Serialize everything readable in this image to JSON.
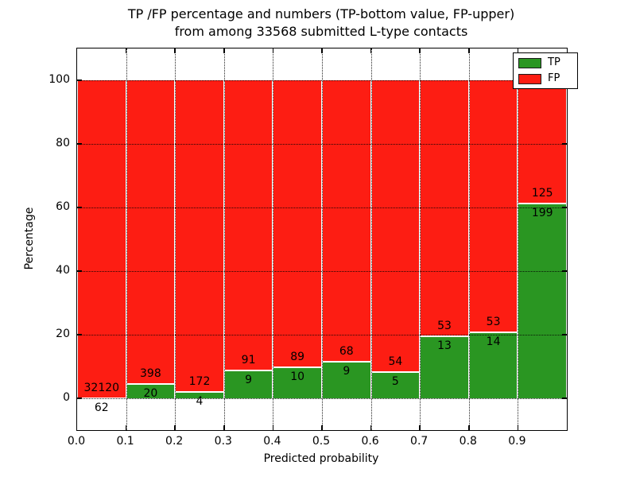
{
  "title": {
    "line1": "TP /FP percentage and numbers (TP-bottom value, FP-upper)",
    "line2": "from among 33568 submitted L-type contacts"
  },
  "x_axis": {
    "label": "Predicted probability",
    "tick_labels": [
      "0.0",
      "0.1",
      "0.2",
      "0.3",
      "0.4",
      "0.5",
      "0.6",
      "0.7",
      "0.8",
      "0.9"
    ],
    "range": [
      0.0,
      1.0
    ]
  },
  "y_axis": {
    "label": "Percentage",
    "tick_labels": [
      "0",
      "20",
      "40",
      "60",
      "80",
      "100"
    ],
    "tick_values": [
      0,
      20,
      40,
      60,
      80,
      100
    ],
    "range": [
      -10,
      110
    ]
  },
  "legend": {
    "position": "upper-right",
    "items": [
      {
        "label": "TP",
        "color": "#2a9622"
      },
      {
        "label": "FP",
        "color": "#fd1d13"
      }
    ]
  },
  "colors": {
    "tp_green": "#2a9622",
    "fp_red": "#fd1d13",
    "bar_edge": "#ffffff",
    "grid": "#000000"
  },
  "chart_data": {
    "type": "bar",
    "stacked": true,
    "normalized_to_percent": true,
    "grid": true,
    "total_submitted": 33568,
    "bin_width": 0.1,
    "bin_starts": [
      0.0,
      0.1,
      0.2,
      0.3,
      0.4,
      0.5,
      0.6,
      0.7,
      0.8,
      0.9
    ],
    "series": [
      {
        "name": "TP",
        "position": "bottom",
        "color": "#2a9622",
        "counts": [
          62,
          20,
          4,
          9,
          10,
          9,
          5,
          13,
          14,
          199
        ]
      },
      {
        "name": "FP",
        "position": "top",
        "color": "#fd1d13",
        "counts": [
          32120,
          398,
          172,
          91,
          89,
          68,
          54,
          53,
          53,
          125
        ]
      }
    ],
    "tp_percent": [
      0.19,
      4.78,
      2.27,
      9.0,
      10.1,
      11.69,
      8.47,
      19.7,
      20.9,
      61.42
    ],
    "title": "TP /FP percentage and numbers (TP-bottom value, FP-upper) from among 33568 submitted L-type contacts",
    "xlabel": "Predicted probability",
    "ylabel": "Percentage",
    "xlim": [
      0.0,
      1.0
    ],
    "ylim": [
      -10,
      110
    ]
  }
}
